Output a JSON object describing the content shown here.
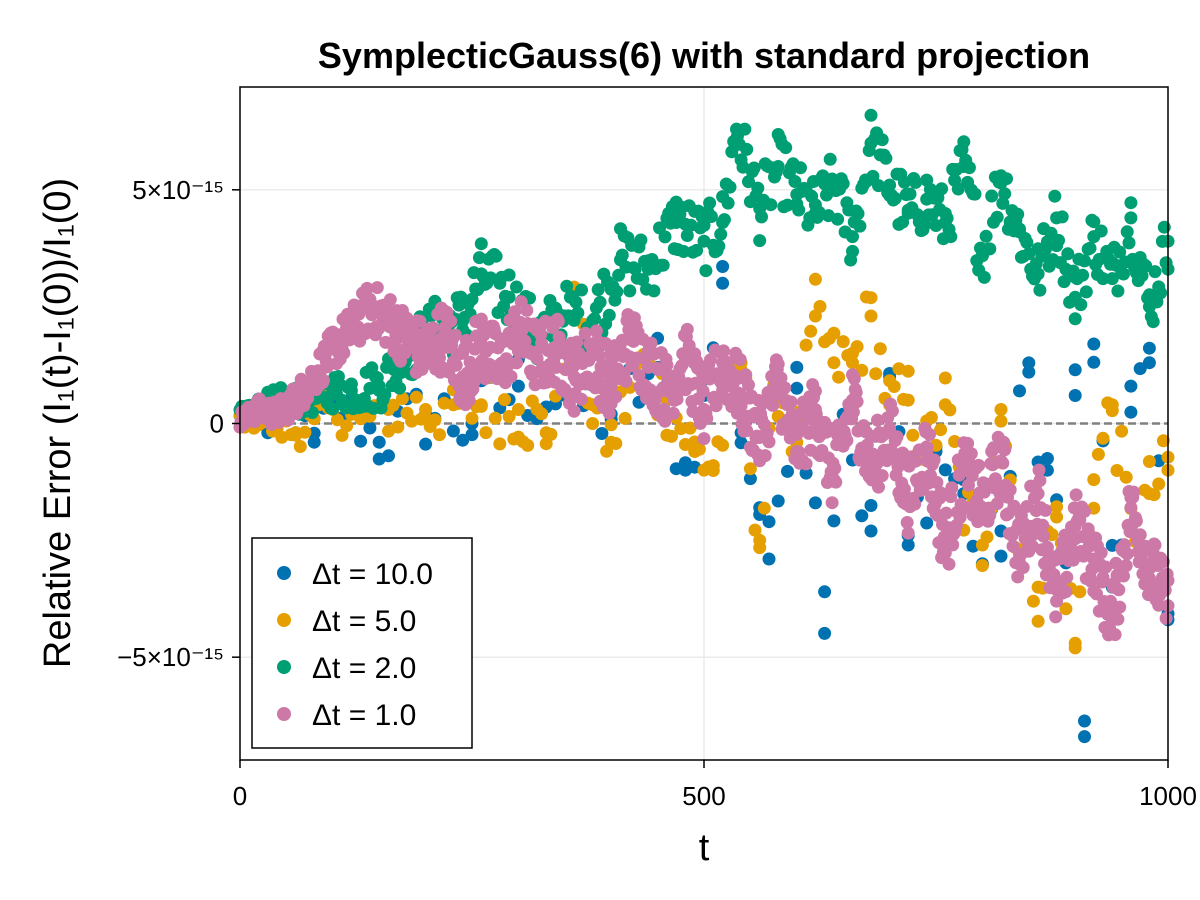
{
  "chart_data": {
    "type": "scatter",
    "title": "SymplecticGauss(6) with standard projection",
    "xlabel": "t",
    "ylabel": "Relative Error (I₁(t)-I₁(0))/I₁(0)",
    "xlim": [
      0,
      1000
    ],
    "ylim": [
      -7.2e-15,
      7.2e-15
    ],
    "xticks": [
      {
        "value": 0,
        "label": "0"
      },
      {
        "value": 500,
        "label": "500"
      },
      {
        "value": 1000,
        "label": "1000"
      }
    ],
    "yticks": [
      {
        "value": -5e-15,
        "label": "−5×10⁻¹⁵"
      },
      {
        "value": 0,
        "label": "0"
      },
      {
        "value": 5e-15,
        "label": "5×10⁻¹⁵"
      }
    ],
    "grid": true,
    "reference_line": {
      "y": 0,
      "style": "dashed",
      "color": "#808080"
    },
    "legend_position": "bottom-left",
    "series": [
      {
        "name": "Δt = 10.0",
        "color": "#0072b2",
        "dt": 10,
        "x": [
          10,
          30,
          50,
          80,
          100,
          120,
          150,
          200,
          250,
          300,
          350,
          400,
          450,
          480,
          500,
          520,
          540,
          560,
          570,
          600,
          630,
          650,
          680,
          700,
          720,
          750,
          780,
          800,
          820,
          850,
          870,
          890,
          900,
          910,
          920,
          940,
          950,
          960,
          980,
          1000
        ],
        "y": [
          1e-16,
          -2e-16,
          3e-16,
          -4e-16,
          4e-16,
          2e-16,
          -4e-16,
          2e-16,
          0,
          8e-16,
          6e-16,
          2e-16,
          1.2e-15,
          -1e-15,
          6e-16,
          3e-15,
          -2e-16,
          -1.8e-15,
          -2.9e-15,
          1.2e-15,
          -3.6e-15,
          2e-16,
          -2.3e-15,
          1e-15,
          -2.6e-15,
          -6e-16,
          -1.5e-15,
          -3e-15,
          -2.3e-15,
          1.1e-15,
          -1e-15,
          -2.8e-15,
          6e-16,
          -6.7e-15,
          1.7e-15,
          -3.5e-15,
          -2.6e-15,
          8e-16,
          1.3e-15,
          -4.2e-15
        ]
      },
      {
        "name": "Δt = 5.0",
        "color": "#e69f00",
        "dt": 5,
        "x": [
          20,
          40,
          60,
          80,
          100,
          130,
          160,
          200,
          230,
          260,
          300,
          330,
          360,
          380,
          400,
          430,
          460,
          490,
          510,
          540,
          560,
          580,
          600,
          620,
          640,
          660,
          680,
          700,
          720,
          740,
          760,
          780,
          800,
          820,
          840,
          860,
          880,
          900,
          920,
          940,
          960,
          980,
          1000
        ],
        "y": [
          1e-16,
          -1e-16,
          -2e-16,
          1e-16,
          3e-16,
          1e-16,
          3e-16,
          3e-16,
          4e-16,
          4e-16,
          3e-16,
          -2e-16,
          2.3e-15,
          4e-16,
          -4e-16,
          1.3e-15,
          5e-16,
          -6e-16,
          -9e-16,
          1.3e-15,
          -2.5e-15,
          9e-16,
          -4e-16,
          2.3e-15,
          1.3e-15,
          1.3e-15,
          2.3e-15,
          4e-16,
          5e-16,
          -6e-16,
          4e-16,
          -1.8e-15,
          -2.6e-15,
          3e-16,
          -2.7e-15,
          -3.5e-15,
          -2e-15,
          -4.7e-15,
          -1.2e-15,
          4e-16,
          -2.3e-15,
          -1.5e-15,
          -1e-15
        ]
      },
      {
        "name": "Δt = 2.0",
        "color": "#009e73",
        "dt": 2,
        "x": [
          10,
          40,
          70,
          100,
          120,
          150,
          180,
          210,
          240,
          260,
          290,
          320,
          350,
          380,
          410,
          440,
          470,
          500,
          520,
          535,
          560,
          580,
          600,
          620,
          640,
          660,
          680,
          700,
          720,
          740,
          760,
          780,
          800,
          820,
          840,
          860,
          880,
          900,
          920,
          940,
          960,
          980,
          1000
        ],
        "y": [
          3e-16,
          5e-16,
          5e-16,
          7e-16,
          7e-16,
          8e-16,
          1.5e-15,
          2e-15,
          2.2e-15,
          3.2e-15,
          2.7e-15,
          1.8e-15,
          2.3e-15,
          2.2e-15,
          3.5e-15,
          3.3e-15,
          4.3e-15,
          3.9e-15,
          4.3e-15,
          6.3e-15,
          4.6e-15,
          5.5e-15,
          4.9e-15,
          4.5e-15,
          5.1e-15,
          4e-15,
          6e-15,
          5.1e-15,
          4.5e-15,
          4.8e-15,
          4.3e-15,
          5.5e-15,
          3.6e-15,
          5.3e-15,
          4.1e-15,
          3.2e-15,
          4.4e-15,
          2.7e-15,
          4e-15,
          3.1e-15,
          4.4e-15,
          2.5e-15,
          3.9e-15
        ]
      },
      {
        "name": "Δt = 1.0",
        "color": "#cc79a7",
        "dt": 1,
        "x": [
          5,
          20,
          40,
          60,
          80,
          100,
          120,
          140,
          160,
          180,
          200,
          220,
          240,
          260,
          280,
          300,
          320,
          340,
          360,
          380,
          400,
          420,
          440,
          460,
          480,
          500,
          520,
          540,
          560,
          580,
          600,
          620,
          640,
          660,
          680,
          700,
          720,
          740,
          760,
          780,
          800,
          820,
          840,
          860,
          880,
          900,
          920,
          940,
          960,
          980,
          1000
        ],
        "y": [
          1e-16,
          3e-16,
          2e-16,
          5e-16,
          1e-15,
          1.6e-15,
          2e-15,
          2.5e-15,
          2.2e-15,
          1.8e-15,
          1.5e-15,
          1.9e-15,
          1e-15,
          1.7e-15,
          1.2e-15,
          2e-15,
          1.4e-15,
          1.6e-15,
          1e-15,
          1.5e-15,
          8e-16,
          1.8e-15,
          1.2e-15,
          7e-16,
          1.4e-15,
          3e-16,
          1.3e-15,
          6e-16,
          -3e-16,
          9e-16,
          -6e-16,
          3e-16,
          -1.2e-15,
          5e-16,
          -9e-16,
          -2e-16,
          -1.6e-15,
          -5e-16,
          -2.6e-15,
          -1e-15,
          -1.8e-15,
          -8e-16,
          -2.8e-15,
          -1.5e-15,
          -3.8e-15,
          -2.2e-15,
          -2.9e-15,
          -4.2e-15,
          -1.8e-15,
          -3e-15,
          -3.9e-15
        ]
      }
    ]
  }
}
